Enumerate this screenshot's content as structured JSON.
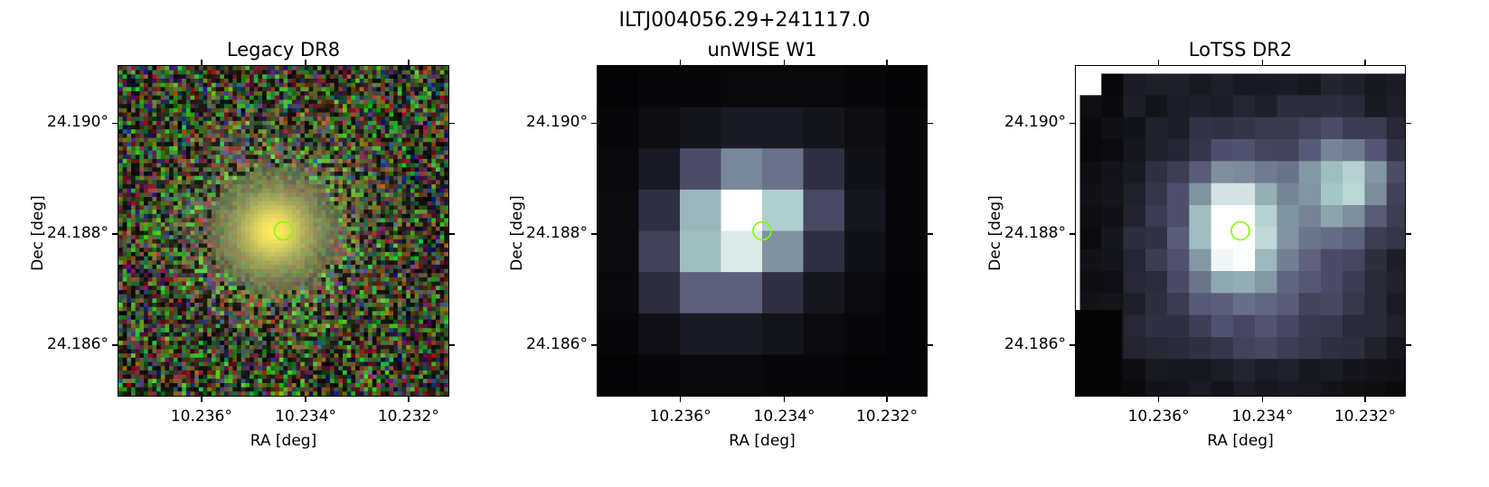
{
  "figure": {
    "title": "ILTJ004056.29+241117.0"
  },
  "panels": [
    {
      "id": "legacy",
      "title": "Legacy DR8",
      "xlabel": "RA [deg]",
      "ylabel": "Dec [deg]",
      "xticks": [
        "10.236°",
        "10.234°",
        "10.232°"
      ],
      "yticks": [
        "24.190°",
        "24.188°",
        "24.186°"
      ],
      "image_style": "rgb-noise-galaxy"
    },
    {
      "id": "unwise",
      "title": "unWISE W1",
      "xlabel": "RA [deg]",
      "ylabel": "Dec [deg]",
      "xticks": [
        "10.236°",
        "10.234°",
        "10.232°"
      ],
      "yticks": [
        "24.190°",
        "24.188°",
        "24.186°"
      ],
      "image_style": "bone-pixel-blob"
    },
    {
      "id": "lotss",
      "title": "LoTSS DR2",
      "xlabel": "RA [deg]",
      "ylabel": "Dec [deg]",
      "xticks": [
        "10.236°",
        "10.234°",
        "10.232°"
      ],
      "yticks": [
        "24.190°",
        "24.188°",
        "24.186°"
      ],
      "image_style": "bone-pixel-radio"
    }
  ],
  "colors": {
    "marker": "#7fff00",
    "background": "#ffffff"
  }
}
